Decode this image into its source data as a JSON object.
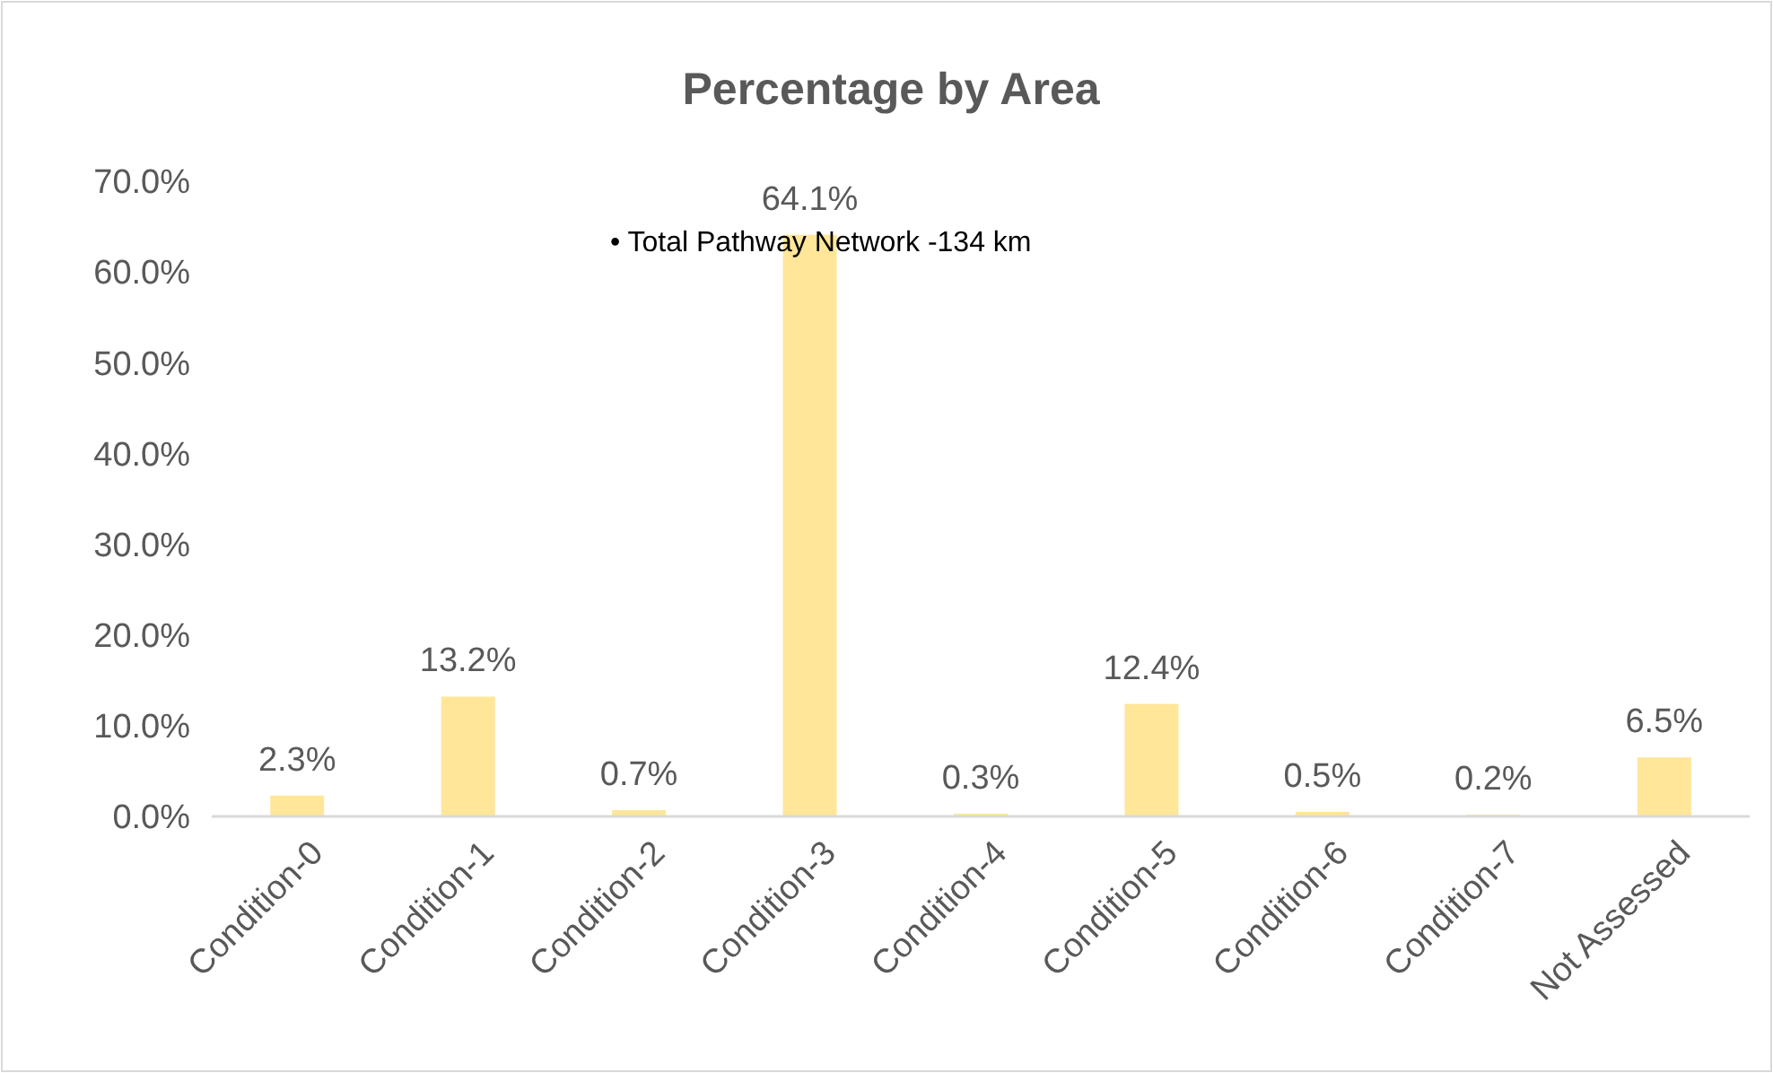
{
  "chart_data": {
    "type": "bar",
    "title": "Percentage by Area",
    "categories": [
      "Condition-0",
      "Condition-1",
      "Condition-2",
      "Condition-3",
      "Condition-4",
      "Condition-5",
      "Condition-6",
      "Condition-7",
      "Not Assessed"
    ],
    "values": [
      2.3,
      13.2,
      0.7,
      64.1,
      0.3,
      12.4,
      0.5,
      0.2,
      6.5
    ],
    "value_labels": [
      "2.3%",
      "13.2%",
      "0.7%",
      "64.1%",
      "0.3%",
      "12.4%",
      "0.5%",
      "0.2%",
      "6.5%"
    ],
    "color": "#ffe699",
    "ylim": [
      0,
      70
    ],
    "yticks": [
      {
        "value": 0,
        "label": "0.0%"
      },
      {
        "value": 10,
        "label": "10.0%"
      },
      {
        "value": 20,
        "label": "20.0%"
      },
      {
        "value": 30,
        "label": "30.0%"
      },
      {
        "value": 40,
        "label": "40.0%"
      },
      {
        "value": 50,
        "label": "50.0%"
      },
      {
        "value": 60,
        "label": "60.0%"
      },
      {
        "value": 70,
        "label": "70.0%"
      }
    ],
    "grid": false,
    "annotations": [
      "• Total Pathway Network -134 km"
    ]
  }
}
